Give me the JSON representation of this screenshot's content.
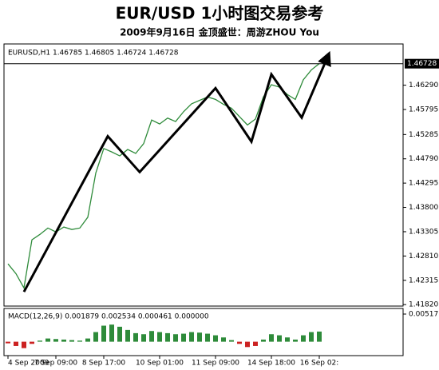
{
  "chart_data": [
    {
      "type": "line",
      "title": "EUR/USD 1小时图交易参考",
      "subtitle": "2009年9月16日 金顶盛世：周游ZHOU You",
      "header": "EURUSD,H1 1.46785 1.46805 1.46724 1.46728",
      "categories": [
        "4 Sep 2009",
        null,
        null,
        null,
        null,
        null,
        "7 Sep 09:00",
        null,
        null,
        null,
        null,
        null,
        "8 Sep 17:00",
        null,
        null,
        null,
        null,
        null,
        null,
        "10 Sep 01:00",
        null,
        null,
        null,
        null,
        null,
        null,
        "11 Sep 09:00",
        null,
        null,
        null,
        null,
        null,
        null,
        "14 Sep 18:00",
        null,
        null,
        null,
        null,
        null,
        "16 Sep 02:"
      ],
      "series": [
        {
          "name": "EURUSD,H1",
          "color": "#2e8b3a",
          "values": [
            1.4265,
            1.4245,
            1.4216,
            1.4314,
            1.4325,
            1.4338,
            1.433,
            1.434,
            1.4335,
            1.4338,
            1.436,
            1.445,
            1.45,
            1.4493,
            1.4485,
            1.4498,
            1.449,
            1.451,
            1.4558,
            1.455,
            1.4562,
            1.4555,
            1.4575,
            1.4591,
            1.4598,
            1.4605,
            1.46,
            1.459,
            1.4582,
            1.4565,
            1.4548,
            1.456,
            1.4605,
            1.463,
            1.4625,
            1.461,
            1.46,
            1.464,
            1.466,
            1.4673
          ]
        }
      ],
      "trend_line": {
        "color": "#000000",
        "x": [
          2,
          12.5,
          16.5,
          26,
          30.5,
          33,
          36.8,
          40
        ],
        "values": [
          1.4208,
          1.4525,
          1.4452,
          1.4623,
          1.4514,
          1.4651,
          1.4563,
          1.4685
        ]
      },
      "current_price": 1.46728,
      "xlim": [
        -0.5,
        49.5
      ],
      "ylim": [
        1.4179,
        1.4713
      ],
      "yticks": [
        {
          "value": 1.4629,
          "label": "1.46290"
        },
        {
          "value": 1.45795,
          "label": "1.45795"
        },
        {
          "value": 1.45285,
          "label": "1.45285"
        },
        {
          "value": 1.4479,
          "label": "1.44790"
        },
        {
          "value": 1.44295,
          "label": "1.44295"
        },
        {
          "value": 1.438,
          "label": "1.43800"
        },
        {
          "value": 1.43305,
          "label": "1.43305"
        },
        {
          "value": 1.4281,
          "label": "1.42810"
        },
        {
          "value": 1.42315,
          "label": "1.42315"
        },
        {
          "value": 1.4182,
          "label": "1.41820"
        }
      ],
      "grid": false
    },
    {
      "type": "bar",
      "header": "MACD(12,26,9) 0.001879 0.002534 0.000461 0.000000",
      "color": "#2e8b3a",
      "negative_color": "#cc2222",
      "values": [
        -0.0003,
        -0.0008,
        -0.0012,
        -0.0004,
        0.0002,
        0.0006,
        0.0005,
        0.0004,
        0.0003,
        0.0002,
        0.0006,
        0.0018,
        0.003,
        0.0032,
        0.0028,
        0.0022,
        0.0016,
        0.0014,
        0.002,
        0.0018,
        0.0016,
        0.0014,
        0.0015,
        0.0018,
        0.0017,
        0.0015,
        0.0012,
        0.0008,
        0.0003,
        -0.0004,
        -0.001,
        -0.0008,
        0.0004,
        0.0014,
        0.0012,
        0.0008,
        0.0004,
        0.0012,
        0.0018,
        0.0019
      ],
      "ylim": [
        -0.0026,
        0.00517
      ],
      "yticks": [
        0.00517
      ]
    }
  ]
}
